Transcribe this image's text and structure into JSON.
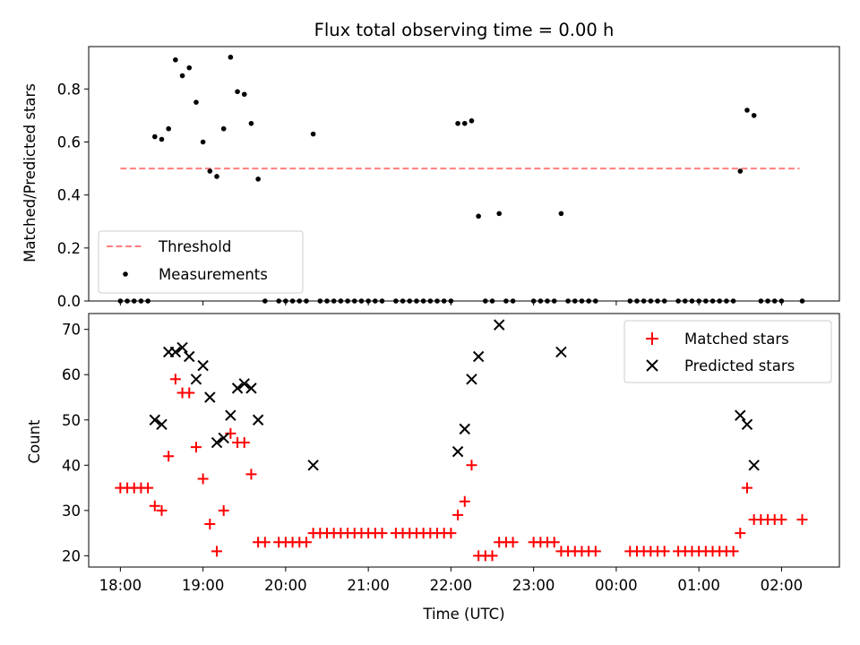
{
  "chart_data": [
    {
      "type": "scatter",
      "title": "Flux total observing time = 0.00 h",
      "xlabel": "",
      "ylabel": "Matched/Predicted stars",
      "xlim": [
        "17:37",
        "02:42"
      ],
      "ylim": [
        0,
        0.96
      ],
      "yticks": [
        "0.0",
        "0.2",
        "0.4",
        "0.6",
        "0.8"
      ],
      "grid": false,
      "legend_position": "lower-left",
      "threshold": {
        "label": "Threshold",
        "y": 0.5,
        "x_start": "18:00",
        "x_end": "02:13",
        "color": "#ff7f7f"
      },
      "series": [
        {
          "name": "Measurements",
          "color": "#000000",
          "points": [
            [
              "18:00",
              0
            ],
            [
              "18:05",
              0
            ],
            [
              "18:10",
              0
            ],
            [
              "18:15",
              0
            ],
            [
              "18:20",
              0
            ],
            [
              "18:25",
              0.62
            ],
            [
              "18:30",
              0.61
            ],
            [
              "18:35",
              0.65
            ],
            [
              "18:40",
              0.91
            ],
            [
              "18:45",
              0.85
            ],
            [
              "18:50",
              0.88
            ],
            [
              "18:55",
              0.75
            ],
            [
              "19:00",
              0.6
            ],
            [
              "19:05",
              0.49
            ],
            [
              "19:10",
              0.47
            ],
            [
              "19:15",
              0.65
            ],
            [
              "19:20",
              0.92
            ],
            [
              "19:25",
              0.79
            ],
            [
              "19:30",
              0.78
            ],
            [
              "19:35",
              0.67
            ],
            [
              "19:40",
              0.46
            ],
            [
              "19:45",
              0
            ],
            [
              "19:55",
              0
            ],
            [
              "20:00",
              0
            ],
            [
              "20:05",
              0
            ],
            [
              "20:10",
              0
            ],
            [
              "20:15",
              0
            ],
            [
              "20:20",
              0.63
            ],
            [
              "20:25",
              0
            ],
            [
              "20:30",
              0
            ],
            [
              "20:35",
              0
            ],
            [
              "20:40",
              0
            ],
            [
              "20:45",
              0
            ],
            [
              "20:50",
              0
            ],
            [
              "20:55",
              0
            ],
            [
              "21:00",
              0
            ],
            [
              "21:05",
              0
            ],
            [
              "21:10",
              0
            ],
            [
              "21:20",
              0
            ],
            [
              "21:25",
              0
            ],
            [
              "21:30",
              0
            ],
            [
              "21:35",
              0
            ],
            [
              "21:40",
              0
            ],
            [
              "21:45",
              0
            ],
            [
              "21:50",
              0
            ],
            [
              "21:55",
              0
            ],
            [
              "22:00",
              0
            ],
            [
              "22:05",
              0.67
            ],
            [
              "22:10",
              0.67
            ],
            [
              "22:15",
              0.68
            ],
            [
              "22:20",
              0.32
            ],
            [
              "22:25",
              0
            ],
            [
              "22:30",
              0
            ],
            [
              "22:35",
              0.33
            ],
            [
              "22:40",
              0
            ],
            [
              "22:45",
              0
            ],
            [
              "23:00",
              0
            ],
            [
              "23:05",
              0
            ],
            [
              "23:10",
              0
            ],
            [
              "23:15",
              0
            ],
            [
              "23:20",
              0.33
            ],
            [
              "23:25",
              0
            ],
            [
              "23:30",
              0
            ],
            [
              "23:35",
              0
            ],
            [
              "23:40",
              0
            ],
            [
              "23:45",
              0
            ],
            [
              "00:10",
              0
            ],
            [
              "00:15",
              0
            ],
            [
              "00:20",
              0
            ],
            [
              "00:25",
              0
            ],
            [
              "00:30",
              0
            ],
            [
              "00:35",
              0
            ],
            [
              "00:45",
              0
            ],
            [
              "00:50",
              0
            ],
            [
              "00:55",
              0
            ],
            [
              "01:00",
              0
            ],
            [
              "01:05",
              0
            ],
            [
              "01:10",
              0
            ],
            [
              "01:15",
              0
            ],
            [
              "01:20",
              0
            ],
            [
              "01:25",
              0
            ],
            [
              "01:30",
              0.49
            ],
            [
              "01:35",
              0.72
            ],
            [
              "01:40",
              0.7
            ],
            [
              "01:45",
              0
            ],
            [
              "01:50",
              0
            ],
            [
              "01:55",
              0
            ],
            [
              "02:00",
              0
            ],
            [
              "02:15",
              0
            ]
          ]
        }
      ]
    },
    {
      "type": "scatter",
      "title": "",
      "xlabel": "Time (UTC)",
      "ylabel": "Count",
      "xlim": [
        "17:37",
        "02:42"
      ],
      "ylim": [
        17.5,
        73.5
      ],
      "yticks": [
        "20",
        "30",
        "40",
        "50",
        "60",
        "70"
      ],
      "xticks": [
        "18:00",
        "19:00",
        "20:00",
        "21:00",
        "22:00",
        "23:00",
        "00:00",
        "01:00",
        "02:00"
      ],
      "grid": false,
      "legend_position": "upper-right",
      "series": [
        {
          "name": "Matched stars",
          "marker": "plus",
          "color": "#ff0000",
          "points": [
            [
              "18:00",
              35
            ],
            [
              "18:05",
              35
            ],
            [
              "18:10",
              35
            ],
            [
              "18:15",
              35
            ],
            [
              "18:20",
              35
            ],
            [
              "18:25",
              31
            ],
            [
              "18:30",
              30
            ],
            [
              "18:35",
              42
            ],
            [
              "18:40",
              59
            ],
            [
              "18:45",
              56
            ],
            [
              "18:50",
              56
            ],
            [
              "18:55",
              44
            ],
            [
              "19:00",
              37
            ],
            [
              "19:05",
              27
            ],
            [
              "19:10",
              21
            ],
            [
              "19:15",
              30
            ],
            [
              "19:20",
              47
            ],
            [
              "19:25",
              45
            ],
            [
              "19:30",
              45
            ],
            [
              "19:35",
              38
            ],
            [
              "19:40",
              23
            ],
            [
              "19:45",
              23
            ],
            [
              "19:55",
              23
            ],
            [
              "20:00",
              23
            ],
            [
              "20:05",
              23
            ],
            [
              "20:10",
              23
            ],
            [
              "20:15",
              23
            ],
            [
              "20:20",
              25
            ],
            [
              "20:25",
              25
            ],
            [
              "20:30",
              25
            ],
            [
              "20:35",
              25
            ],
            [
              "20:40",
              25
            ],
            [
              "20:45",
              25
            ],
            [
              "20:50",
              25
            ],
            [
              "20:55",
              25
            ],
            [
              "21:00",
              25
            ],
            [
              "21:05",
              25
            ],
            [
              "21:10",
              25
            ],
            [
              "21:20",
              25
            ],
            [
              "21:25",
              25
            ],
            [
              "21:30",
              25
            ],
            [
              "21:35",
              25
            ],
            [
              "21:40",
              25
            ],
            [
              "21:45",
              25
            ],
            [
              "21:50",
              25
            ],
            [
              "21:55",
              25
            ],
            [
              "22:00",
              25
            ],
            [
              "22:05",
              29
            ],
            [
              "22:10",
              32
            ],
            [
              "22:15",
              40
            ],
            [
              "22:20",
              20
            ],
            [
              "22:25",
              20
            ],
            [
              "22:30",
              20
            ],
            [
              "22:35",
              23
            ],
            [
              "22:40",
              23
            ],
            [
              "22:45",
              23
            ],
            [
              "23:00",
              23
            ],
            [
              "23:05",
              23
            ],
            [
              "23:10",
              23
            ],
            [
              "23:15",
              23
            ],
            [
              "23:20",
              21
            ],
            [
              "23:25",
              21
            ],
            [
              "23:30",
              21
            ],
            [
              "23:35",
              21
            ],
            [
              "23:40",
              21
            ],
            [
              "23:45",
              21
            ],
            [
              "00:10",
              21
            ],
            [
              "00:15",
              21
            ],
            [
              "00:20",
              21
            ],
            [
              "00:25",
              21
            ],
            [
              "00:30",
              21
            ],
            [
              "00:35",
              21
            ],
            [
              "00:45",
              21
            ],
            [
              "00:50",
              21
            ],
            [
              "00:55",
              21
            ],
            [
              "01:00",
              21
            ],
            [
              "01:05",
              21
            ],
            [
              "01:10",
              21
            ],
            [
              "01:15",
              21
            ],
            [
              "01:20",
              21
            ],
            [
              "01:25",
              21
            ],
            [
              "01:30",
              25
            ],
            [
              "01:35",
              35
            ],
            [
              "01:40",
              28
            ],
            [
              "01:45",
              28
            ],
            [
              "01:50",
              28
            ],
            [
              "01:55",
              28
            ],
            [
              "02:00",
              28
            ],
            [
              "02:15",
              28
            ]
          ]
        },
        {
          "name": "Predicted stars",
          "marker": "x",
          "color": "#000000",
          "points": [
            [
              "18:25",
              50
            ],
            [
              "18:30",
              49
            ],
            [
              "18:35",
              65
            ],
            [
              "18:40",
              65
            ],
            [
              "18:45",
              66
            ],
            [
              "18:50",
              64
            ],
            [
              "18:55",
              59
            ],
            [
              "19:00",
              62
            ],
            [
              "19:05",
              55
            ],
            [
              "19:10",
              45
            ],
            [
              "19:15",
              46
            ],
            [
              "19:20",
              51
            ],
            [
              "19:25",
              57
            ],
            [
              "19:30",
              58
            ],
            [
              "19:35",
              57
            ],
            [
              "19:40",
              50
            ],
            [
              "20:20",
              40
            ],
            [
              "22:05",
              43
            ],
            [
              "22:10",
              48
            ],
            [
              "22:15",
              59
            ],
            [
              "22:20",
              64
            ],
            [
              "22:35",
              71
            ],
            [
              "23:20",
              65
            ],
            [
              "01:30",
              51
            ],
            [
              "01:35",
              49
            ],
            [
              "01:40",
              40
            ]
          ]
        }
      ]
    }
  ]
}
